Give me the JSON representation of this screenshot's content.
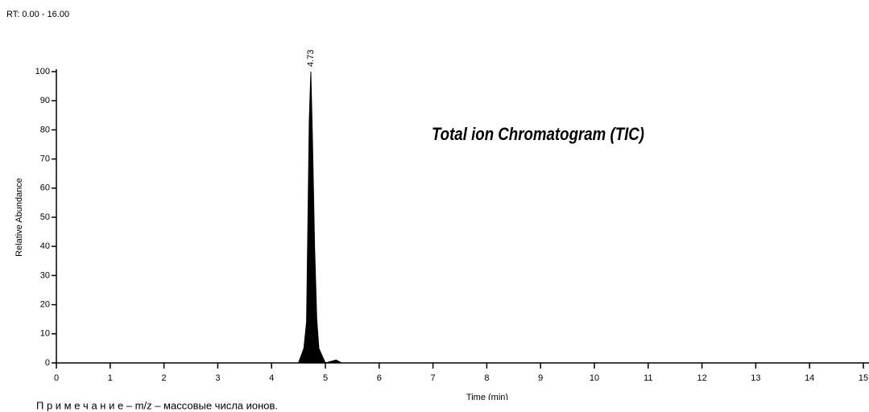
{
  "header": "RT: 0.00 - 16.00",
  "note": "П р и м е ч а н и е  – m/z  – массовые числа ионов.",
  "chart_data": {
    "type": "area",
    "title": "Total ion Chromatogram (TIC)",
    "y_label": "Relative Abundance",
    "x_label": "Time (min)",
    "annotations": [
      "4.73"
    ],
    "color": "#000000",
    "x": [
      0,
      4.5,
      4.6,
      4.65,
      4.68,
      4.7,
      4.73,
      4.76,
      4.8,
      4.84,
      4.88,
      4.95,
      5.0,
      5.2,
      5.3,
      15
    ],
    "values": [
      0,
      0,
      5,
      14,
      55,
      83,
      100,
      77,
      40,
      15,
      5,
      2,
      0,
      1,
      0,
      0
    ],
    "xlim": [
      0,
      15
    ],
    "xticks": [
      0,
      1,
      2,
      3,
      4,
      5,
      6,
      7,
      8,
      9,
      10,
      11,
      12,
      13,
      14,
      15
    ],
    "ylim": [
      0,
      100
    ],
    "yticks": [
      0,
      10,
      20,
      30,
      40,
      50,
      60,
      70,
      80,
      90,
      100
    ]
  }
}
